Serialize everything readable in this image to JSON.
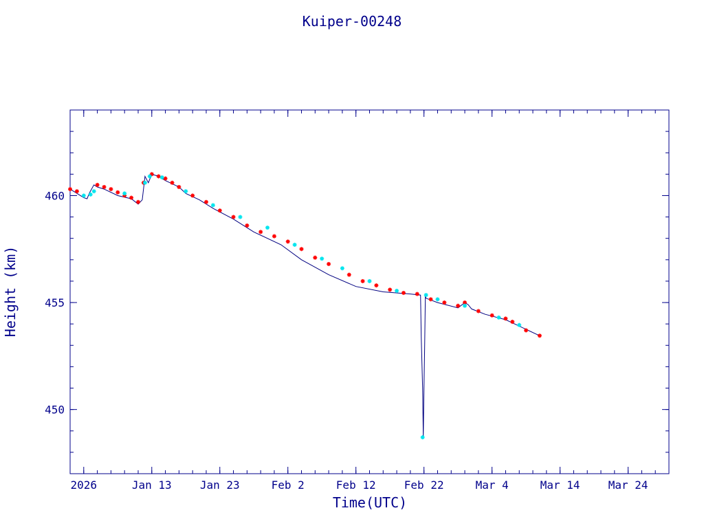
{
  "chart_data": {
    "type": "line",
    "title": "Kuiper-00248",
    "xlabel": "Time(UTC)",
    "ylabel": "Height (km)",
    "x_range": [
      "2026-01-01",
      "2026-03-30"
    ],
    "ylim": [
      447,
      464
    ],
    "x_ticks": [
      {
        "x": "2026-01-03",
        "label": "2026"
      },
      {
        "x": "2026-01-13",
        "label": "Jan 13"
      },
      {
        "x": "2026-01-23",
        "label": "Jan 23"
      },
      {
        "x": "2026-02-02",
        "label": "Feb  2"
      },
      {
        "x": "2026-02-12",
        "label": "Feb 12"
      },
      {
        "x": "2026-02-22",
        "label": "Feb 22"
      },
      {
        "x": "2026-03-04",
        "label": "Mar  4"
      },
      {
        "x": "2026-03-14",
        "label": "Mar 14"
      },
      {
        "x": "2026-03-24",
        "label": "Mar 24"
      }
    ],
    "y_ticks": [
      450,
      455,
      460
    ],
    "grid": false,
    "colors": {
      "axis": "#00008B",
      "line": "#000080",
      "point_red": "#ff0000",
      "point_cyan": "#00e5ee"
    },
    "series": [
      {
        "style": "line",
        "x": [
          "2026-01-01",
          "2026-01-03",
          "2026-01-03.5",
          "2026-01-03.8",
          "2026-01-04.5",
          "2026-01-05",
          "2026-01-06",
          "2026-01-08",
          "2026-01-10",
          "2026-01-11",
          "2026-01-11.6",
          "2026-01-12",
          "2026-01-12.5",
          "2026-01-13",
          "2026-01-14",
          "2026-01-15",
          "2026-01-17",
          "2026-01-18",
          "2026-01-20",
          "2026-01-22",
          "2026-01-25",
          "2026-01-28",
          "2026-02-01",
          "2026-02-04",
          "2026-02-08",
          "2026-02-12",
          "2026-02-16",
          "2026-02-20",
          "2026-02-21.5",
          "2026-02-21.6",
          "2026-02-21.8",
          "2026-02-21.9",
          "2026-02-22.0",
          "2026-02-22.1",
          "2026-02-22.2",
          "2026-02-22.3",
          "2026-02-24",
          "2026-02-27",
          "2026-02-28",
          "2026-02-28.5",
          "2026-03-01",
          "2026-03-03",
          "2026-03-06",
          "2026-03-09",
          "2026-03-11"
        ],
        "y": [
          460.3,
          459.9,
          459.85,
          460.1,
          460.5,
          460.4,
          460.3,
          460.0,
          459.85,
          459.6,
          459.8,
          460.9,
          460.6,
          461.0,
          460.9,
          460.7,
          460.4,
          460.1,
          459.8,
          459.4,
          458.9,
          458.3,
          457.7,
          457.0,
          456.3,
          455.75,
          455.5,
          455.4,
          455.35,
          453.4,
          451.0,
          448.7,
          451.0,
          453.0,
          455.3,
          455.2,
          455.0,
          454.75,
          455.0,
          454.9,
          454.7,
          454.45,
          454.2,
          453.75,
          453.45
        ]
      },
      {
        "style": "markers",
        "marker": "asterisk",
        "x": [
          "2026-01-01",
          "2026-01-02",
          "2026-01-05",
          "2026-01-06",
          "2026-01-07",
          "2026-01-08",
          "2026-01-09",
          "2026-01-10",
          "2026-01-11",
          "2026-01-11.8",
          "2026-01-13",
          "2026-01-14",
          "2026-01-15",
          "2026-01-16",
          "2026-01-17",
          "2026-01-19",
          "2026-01-21",
          "2026-01-23",
          "2026-01-25",
          "2026-01-27",
          "2026-01-29",
          "2026-01-31",
          "2026-02-02",
          "2026-02-04",
          "2026-02-06",
          "2026-02-08",
          "2026-02-11",
          "2026-02-13",
          "2026-02-15",
          "2026-02-17",
          "2026-02-19",
          "2026-02-21",
          "2026-02-23",
          "2026-02-25",
          "2026-02-27",
          "2026-02-28",
          "2026-03-02",
          "2026-03-04",
          "2026-03-06",
          "2026-03-07",
          "2026-03-09",
          "2026-03-11"
        ],
        "y": [
          460.3,
          460.2,
          460.5,
          460.4,
          460.3,
          460.15,
          460.0,
          459.9,
          459.7,
          460.6,
          461.0,
          460.9,
          460.8,
          460.6,
          460.4,
          460.0,
          459.7,
          459.3,
          459.0,
          458.6,
          458.3,
          458.1,
          457.85,
          457.5,
          457.1,
          456.8,
          456.3,
          456.0,
          455.8,
          455.6,
          455.45,
          455.4,
          455.15,
          455.0,
          454.85,
          455.0,
          454.6,
          454.4,
          454.25,
          454.1,
          453.7,
          453.45
        ],
        "color": "red"
      },
      {
        "style": "markers",
        "marker": "asterisk",
        "x": [
          "2026-01-03",
          "2026-01-04",
          "2026-01-04.5",
          "2026-01-09",
          "2026-01-12",
          "2026-01-12.7",
          "2026-01-14.5",
          "2026-01-18",
          "2026-01-22",
          "2026-01-26",
          "2026-01-30",
          "2026-02-03",
          "2026-02-07",
          "2026-02-10",
          "2026-02-14",
          "2026-02-18",
          "2026-02-21.8",
          "2026-02-22.3",
          "2026-02-24",
          "2026-02-28",
          "2026-03-05",
          "2026-03-08"
        ],
        "y": [
          460.0,
          460.05,
          460.2,
          460.1,
          460.6,
          460.9,
          460.85,
          460.2,
          459.55,
          459.0,
          458.5,
          457.7,
          457.05,
          456.6,
          456.0,
          455.55,
          448.7,
          455.35,
          455.15,
          454.85,
          454.3,
          453.95
        ],
        "color": "cyan"
      }
    ]
  }
}
